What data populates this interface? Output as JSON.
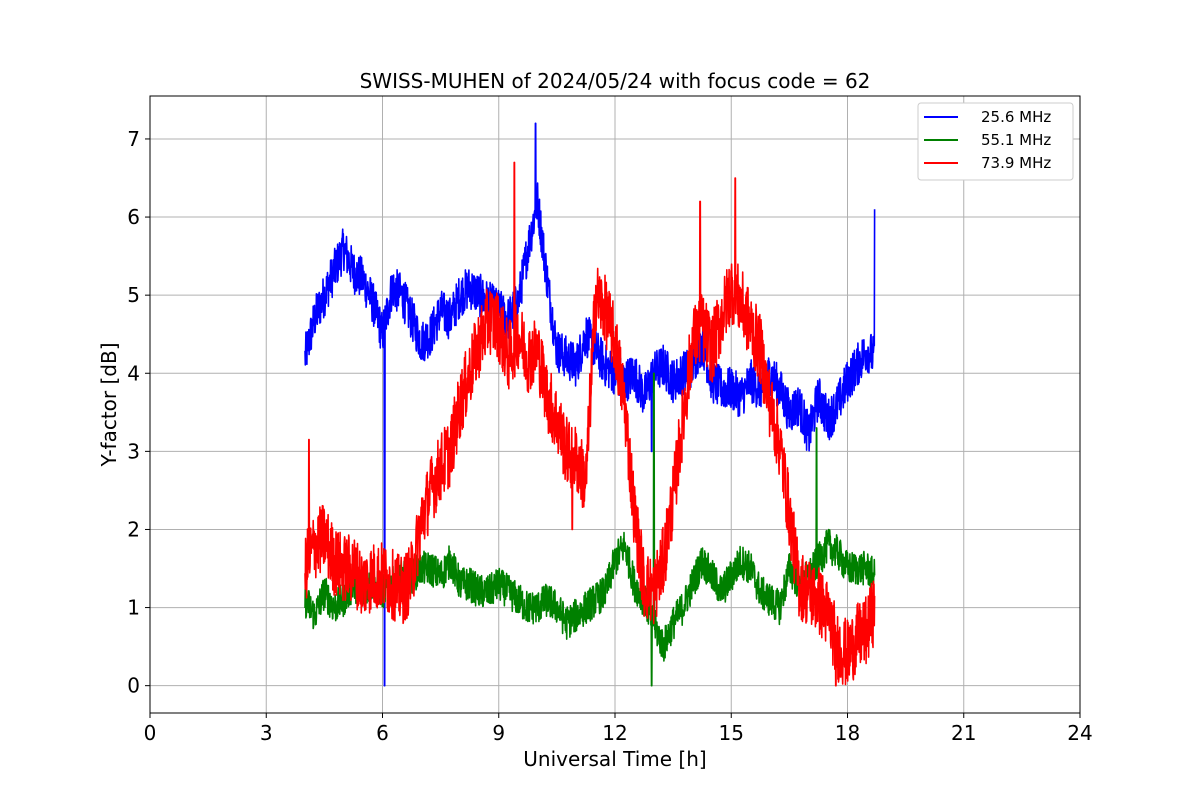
{
  "chart_data": {
    "type": "line",
    "title": "SWISS-MUHEN of 2024/05/24 with focus code = 62",
    "xlabel": "Universal Time [h]",
    "ylabel": "Y-factor [dB]",
    "xlim": [
      0,
      24
    ],
    "ylim": [
      -0.35,
      7.55
    ],
    "xticks": [
      0,
      3,
      6,
      9,
      12,
      15,
      18,
      21,
      24
    ],
    "yticks": [
      0,
      1,
      2,
      3,
      4,
      5,
      6,
      7
    ],
    "grid": true,
    "legend_position": "top-right",
    "x": [
      4.0,
      4.25,
      4.5,
      4.75,
      5.0,
      5.25,
      5.5,
      5.75,
      6.0,
      6.25,
      6.5,
      6.75,
      7.0,
      7.25,
      7.5,
      7.75,
      8.0,
      8.25,
      8.5,
      8.75,
      9.0,
      9.25,
      9.5,
      9.75,
      10.0,
      10.25,
      10.5,
      10.75,
      11.0,
      11.25,
      11.5,
      11.75,
      12.0,
      12.25,
      12.5,
      12.75,
      13.0,
      13.25,
      13.5,
      13.75,
      14.0,
      14.25,
      14.5,
      14.75,
      15.0,
      15.25,
      15.5,
      15.75,
      16.0,
      16.25,
      16.5,
      16.75,
      17.0,
      17.25,
      17.5,
      17.75,
      18.0,
      18.25,
      18.5,
      18.7
    ],
    "series": [
      {
        "name": "25.6 MHz",
        "color": "#0000ff",
        "values": [
          4.2,
          4.7,
          5.0,
          5.3,
          5.6,
          5.3,
          5.2,
          4.9,
          4.5,
          5.1,
          5.0,
          4.7,
          4.4,
          4.5,
          4.8,
          4.7,
          5.0,
          5.1,
          5.0,
          4.9,
          4.8,
          4.7,
          4.9,
          5.6,
          6.2,
          5.2,
          4.3,
          4.2,
          4.1,
          4.5,
          4.3,
          4.1,
          4.0,
          3.9,
          4.0,
          3.7,
          4.0,
          4.1,
          3.9,
          4.0,
          4.1,
          4.4,
          3.9,
          3.8,
          3.8,
          3.7,
          3.9,
          3.8,
          4.0,
          3.8,
          3.5,
          3.6,
          3.2,
          3.7,
          3.4,
          3.6,
          3.9,
          4.1,
          4.3,
          4.2
        ],
        "extremes": [
          {
            "x": 6.05,
            "y": 0.0
          },
          {
            "x": 9.95,
            "y": 7.2
          },
          {
            "x": 12.95,
            "y": 3.0
          },
          {
            "x": 18.7,
            "y": 6.1
          }
        ]
      },
      {
        "name": "55.1 MHz",
        "color": "#008000",
        "values": [
          1.1,
          0.9,
          1.2,
          1.0,
          1.1,
          1.3,
          1.2,
          1.3,
          1.2,
          1.3,
          1.4,
          1.4,
          1.5,
          1.5,
          1.4,
          1.6,
          1.3,
          1.3,
          1.2,
          1.2,
          1.3,
          1.2,
          1.1,
          1.0,
          1.0,
          1.1,
          1.0,
          0.8,
          0.9,
          1.0,
          1.1,
          1.2,
          1.6,
          1.8,
          1.3,
          1.1,
          0.8,
          0.5,
          0.8,
          1.0,
          1.3,
          1.6,
          1.4,
          1.2,
          1.4,
          1.6,
          1.5,
          1.2,
          1.1,
          1.0,
          1.5,
          1.3,
          1.4,
          1.6,
          1.8,
          1.7,
          1.5,
          1.5,
          1.5,
          1.4
        ],
        "extremes": [
          {
            "x": 12.95,
            "y": 0.0
          },
          {
            "x": 13.0,
            "y": 4.0
          },
          {
            "x": 17.2,
            "y": 3.3
          }
        ]
      },
      {
        "name": "73.9 MHz",
        "color": "#ff0000",
        "values": [
          1.5,
          1.8,
          1.9,
          1.6,
          1.5,
          1.5,
          1.3,
          1.4,
          1.4,
          1.3,
          1.2,
          1.4,
          2.1,
          2.5,
          2.8,
          3.0,
          3.6,
          4.0,
          4.4,
          4.7,
          4.6,
          4.2,
          4.5,
          4.2,
          4.3,
          3.7,
          3.4,
          3.0,
          2.9,
          2.6,
          5.0,
          4.8,
          4.4,
          3.6,
          2.2,
          1.3,
          1.2,
          1.6,
          2.4,
          3.4,
          4.4,
          4.6,
          4.3,
          4.7,
          5.1,
          4.9,
          4.6,
          4.3,
          3.6,
          3.1,
          2.2,
          1.3,
          1.2,
          1.1,
          0.9,
          0.5,
          0.4,
          0.6,
          0.7,
          1.0
        ],
        "extremes": [
          {
            "x": 4.1,
            "y": 3.15
          },
          {
            "x": 9.4,
            "y": 6.7
          },
          {
            "x": 10.9,
            "y": 2.0
          },
          {
            "x": 14.2,
            "y": 6.2
          },
          {
            "x": 15.1,
            "y": 6.5
          },
          {
            "x": 17.7,
            "y": 0.0
          }
        ]
      }
    ]
  }
}
